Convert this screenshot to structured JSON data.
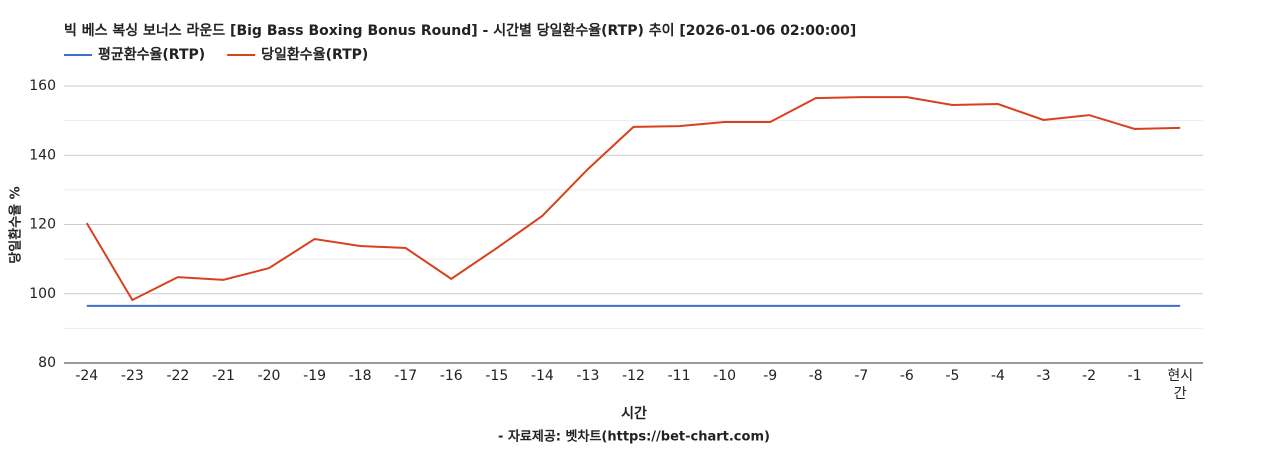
{
  "chart_data": {
    "type": "line",
    "title": "빅 베스 복싱 보너스 라운드 [Big Bass Boxing Bonus Round] - 시간별 당일환수율(RTP) 추이 [2026-01-06 02:00:00]",
    "x_label": "시간",
    "y_label": "당일환수율 %",
    "source": "- 자료제공: 벳차트(https://bet-chart.com)",
    "categories": [
      "-24",
      "-23",
      "-22",
      "-21",
      "-20",
      "-19",
      "-18",
      "-17",
      "-16",
      "-15",
      "-14",
      "-13",
      "-12",
      "-11",
      "-10",
      "-9",
      "-8",
      "-7",
      "-6",
      "-5",
      "-4",
      "-3",
      "-2",
      "-1",
      "현시간"
    ],
    "series": [
      {
        "name": "평균환수율(RTP)",
        "color": "#3f6fce",
        "values": [
          96.5,
          96.5,
          96.5,
          96.5,
          96.5,
          96.5,
          96.5,
          96.5,
          96.5,
          96.5,
          96.5,
          96.5,
          96.5,
          96.5,
          96.5,
          96.5,
          96.5,
          96.5,
          96.5,
          96.5,
          96.5,
          96.5,
          96.5,
          96.5,
          96.5
        ]
      },
      {
        "name": "당일환수율(RTP)",
        "color": "#d9401e",
        "values": [
          120.4,
          98.2,
          104.8,
          104.0,
          107.4,
          115.8,
          113.8,
          113.2,
          104.3,
          113.2,
          122.5,
          136.0,
          148.2,
          148.4,
          149.6,
          149.6,
          156.5,
          156.8,
          156.8,
          154.5,
          154.8,
          150.2,
          151.6,
          147.6,
          147.9
        ]
      }
    ],
    "ylim": [
      80,
      160
    ],
    "yticks": [
      80,
      100,
      120,
      140,
      160
    ],
    "grid": true,
    "minor_grid": true,
    "legend": "top-left"
  }
}
